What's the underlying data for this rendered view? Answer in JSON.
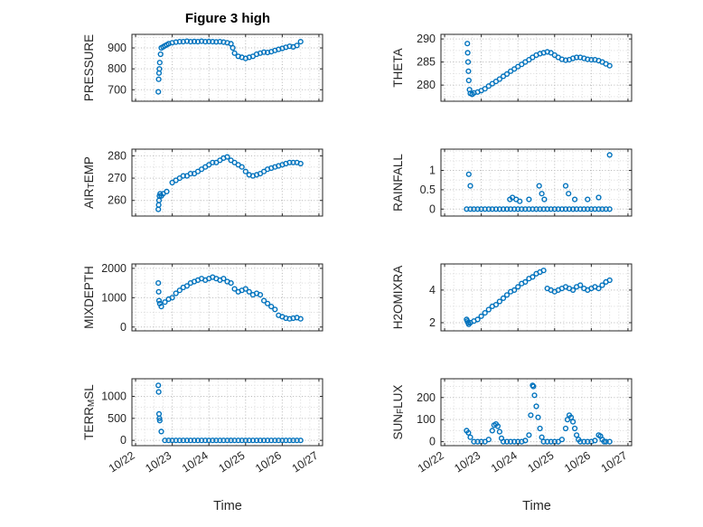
{
  "title": "Figure 3 high",
  "colors": {
    "marker": "#0072BD",
    "axis": "#262626",
    "grid_major": "#b5b5b5",
    "grid_minor": "#d9d9d9"
  },
  "xaxis": {
    "label": "Time",
    "lim": [
      21.9,
      27.1
    ],
    "ticks": [
      22,
      23,
      24,
      25,
      26,
      27
    ],
    "tick_labels": [
      "10/22",
      "10/23",
      "10/24",
      "10/25",
      "10/26",
      "10/27"
    ]
  },
  "chart_data": [
    {
      "type": "scatter",
      "name": "PRESSURE",
      "label": "PRESSURE",
      "row": 0,
      "col": 0,
      "ylim": [
        645,
        965
      ],
      "yticks": [
        700,
        800,
        900
      ],
      "x": [
        22.62,
        22.63,
        22.64,
        22.65,
        22.66,
        22.68,
        22.7,
        22.75,
        22.8,
        22.85,
        22.9,
        23.0,
        23.1,
        23.2,
        23.3,
        23.4,
        23.5,
        23.6,
        23.7,
        23.8,
        23.9,
        24.0,
        24.1,
        24.2,
        24.3,
        24.4,
        24.5,
        24.6,
        24.65,
        24.7,
        24.8,
        24.9,
        25.0,
        25.1,
        25.2,
        25.3,
        25.4,
        25.5,
        25.6,
        25.7,
        25.8,
        25.9,
        26.0,
        26.1,
        26.2,
        26.3,
        26.4,
        26.5
      ],
      "y": [
        690,
        750,
        780,
        800,
        830,
        870,
        900,
        905,
        910,
        915,
        920,
        925,
        928,
        930,
        930,
        932,
        930,
        931,
        930,
        932,
        930,
        931,
        930,
        929,
        930,
        928,
        925,
        920,
        900,
        875,
        860,
        855,
        850,
        855,
        860,
        870,
        875,
        880,
        878,
        882,
        888,
        893,
        898,
        903,
        908,
        905,
        912,
        930
      ]
    },
    {
      "type": "scatter",
      "name": "THETA",
      "label": "THETA",
      "row": 0,
      "col": 1,
      "ylim": [
        276.5,
        291
      ],
      "yticks": [
        280,
        285,
        290
      ],
      "x": [
        22.62,
        22.63,
        22.64,
        22.65,
        22.66,
        22.68,
        22.7,
        22.75,
        22.8,
        22.9,
        23.0,
        23.1,
        23.2,
        23.3,
        23.4,
        23.5,
        23.6,
        23.7,
        23.8,
        23.9,
        24.0,
        24.1,
        24.2,
        24.3,
        24.4,
        24.5,
        24.6,
        24.7,
        24.8,
        24.9,
        25.0,
        25.1,
        25.2,
        25.3,
        25.4,
        25.5,
        25.6,
        25.7,
        25.8,
        25.9,
        26.0,
        26.1,
        26.2,
        26.3,
        26.4,
        26.5
      ],
      "y": [
        289,
        287,
        285,
        283,
        281,
        279,
        278.2,
        278,
        278.3,
        278.5,
        278.8,
        279.2,
        279.8,
        280.3,
        280.8,
        281.3,
        281.9,
        282.4,
        283,
        283.5,
        284,
        284.5,
        285,
        285.5,
        286,
        286.5,
        286.8,
        287,
        287.2,
        287,
        286.5,
        286,
        285.6,
        285.4,
        285.5,
        285.8,
        286,
        286,
        285.8,
        285.6,
        285.5,
        285.5,
        285.3,
        285,
        284.6,
        284.2
      ]
    },
    {
      "type": "scatter",
      "name": "AIRTEMP",
      "label": "AIR_TEMP",
      "row": 1,
      "col": 0,
      "ylim": [
        253,
        283
      ],
      "yticks": [
        260,
        270,
        280
      ],
      "x": [
        22.62,
        22.63,
        22.64,
        22.65,
        22.67,
        22.7,
        22.75,
        22.85,
        23.0,
        23.1,
        23.2,
        23.3,
        23.4,
        23.5,
        23.6,
        23.7,
        23.8,
        23.9,
        24.0,
        24.1,
        24.2,
        24.3,
        24.4,
        24.5,
        24.6,
        24.7,
        24.8,
        24.9,
        25.0,
        25.1,
        25.2,
        25.3,
        25.4,
        25.5,
        25.6,
        25.7,
        25.8,
        25.9,
        26.0,
        26.1,
        26.2,
        26.3,
        26.4,
        26.5
      ],
      "y": [
        256,
        258,
        260,
        262,
        263,
        262,
        263,
        264,
        268,
        269,
        270,
        271,
        271,
        272,
        272,
        273,
        274,
        275,
        276,
        277,
        277,
        278,
        279,
        279.5,
        278,
        277,
        276,
        275,
        273,
        271.5,
        271,
        271.5,
        272,
        273,
        274,
        274.5,
        275,
        275.5,
        276,
        276.5,
        277,
        277,
        277,
        276.5
      ]
    },
    {
      "type": "scatter",
      "name": "RAINFALL",
      "label": "RAINFALL",
      "row": 1,
      "col": 1,
      "ylim": [
        -0.18,
        1.55
      ],
      "yticks": [
        0,
        0.5,
        1
      ],
      "x": [
        22.6,
        22.7,
        22.8,
        22.9,
        23.0,
        23.1,
        23.2,
        23.3,
        23.4,
        23.5,
        23.6,
        23.7,
        23.8,
        23.9,
        24.0,
        24.1,
        24.2,
        24.3,
        24.4,
        24.5,
        24.6,
        24.7,
        24.8,
        24.9,
        25.0,
        25.1,
        25.2,
        25.3,
        25.4,
        25.5,
        25.6,
        25.7,
        25.8,
        25.9,
        26.0,
        26.1,
        26.2,
        26.3,
        26.4,
        26.5,
        22.66,
        22.7,
        23.78,
        23.85,
        23.95,
        24.05,
        24.3,
        24.58,
        24.65,
        24.72,
        25.3,
        25.38,
        25.55,
        25.9,
        26.2,
        26.5
      ],
      "y": [
        0,
        0,
        0,
        0,
        0,
        0,
        0,
        0,
        0,
        0,
        0,
        0,
        0,
        0,
        0,
        0,
        0,
        0,
        0,
        0,
        0,
        0,
        0,
        0,
        0,
        0,
        0,
        0,
        0,
        0,
        0,
        0,
        0,
        0,
        0,
        0,
        0,
        0,
        0,
        0,
        0.9,
        0.6,
        0.25,
        0.3,
        0.25,
        0.2,
        0.25,
        0.6,
        0.4,
        0.25,
        0.6,
        0.4,
        0.25,
        0.25,
        0.3,
        1.4
      ]
    },
    {
      "type": "scatter",
      "name": "MIXDEPTH",
      "label": "MIXDEPTH",
      "row": 2,
      "col": 0,
      "ylim": [
        -130,
        2150
      ],
      "yticks": [
        0,
        1000,
        2000
      ],
      "x": [
        22.62,
        22.63,
        22.64,
        22.66,
        22.7,
        22.8,
        22.9,
        23.0,
        23.1,
        23.2,
        23.3,
        23.4,
        23.5,
        23.6,
        23.7,
        23.8,
        23.9,
        24.0,
        24.1,
        24.2,
        24.3,
        24.4,
        24.5,
        24.6,
        24.7,
        24.8,
        24.9,
        25.0,
        25.1,
        25.2,
        25.3,
        25.4,
        25.5,
        25.6,
        25.7,
        25.8,
        25.9,
        26.0,
        26.1,
        26.2,
        26.3,
        26.4,
        26.5
      ],
      "y": [
        1500,
        1200,
        900,
        800,
        700,
        850,
        950,
        1000,
        1150,
        1250,
        1350,
        1400,
        1500,
        1550,
        1600,
        1650,
        1600,
        1650,
        1700,
        1650,
        1600,
        1650,
        1550,
        1500,
        1300,
        1200,
        1250,
        1300,
        1200,
        1100,
        1150,
        1100,
        900,
        800,
        700,
        600,
        400,
        350,
        300,
        280,
        300,
        320,
        280
      ]
    },
    {
      "type": "scatter",
      "name": "H2OMIXRA",
      "label": "H2OMIXRA",
      "row": 2,
      "col": 1,
      "ylim": [
        1.5,
        5.6
      ],
      "yticks": [
        2,
        4
      ],
      "x": [
        22.6,
        22.62,
        22.64,
        22.66,
        22.7,
        22.8,
        22.9,
        23.0,
        23.1,
        23.2,
        23.3,
        23.4,
        23.5,
        23.6,
        23.7,
        23.8,
        23.9,
        24.0,
        24.1,
        24.2,
        24.3,
        24.4,
        24.5,
        24.6,
        24.7,
        24.8,
        24.9,
        25.0,
        25.1,
        25.2,
        25.3,
        25.4,
        25.5,
        25.6,
        25.7,
        25.8,
        25.9,
        26.0,
        26.1,
        26.2,
        26.3,
        26.4,
        26.5
      ],
      "y": [
        2.2,
        2.1,
        2.0,
        1.9,
        2.0,
        2.1,
        2.2,
        2.4,
        2.6,
        2.8,
        3.0,
        3.1,
        3.3,
        3.5,
        3.7,
        3.9,
        4.0,
        4.2,
        4.4,
        4.5,
        4.7,
        4.8,
        5.0,
        5.1,
        5.2,
        4.1,
        4.0,
        3.9,
        4.0,
        4.1,
        4.2,
        4.1,
        4.0,
        4.2,
        4.3,
        4.1,
        4.0,
        4.1,
        4.2,
        4.1,
        4.3,
        4.5,
        4.6
      ]
    },
    {
      "type": "scatter",
      "name": "TERRMSL",
      "label": "TERR_MSL",
      "row": 3,
      "col": 0,
      "ylim": [
        -120,
        1400
      ],
      "yticks": [
        0,
        500,
        1000
      ],
      "x": [
        22.62,
        22.63,
        22.64,
        22.65,
        22.66,
        22.7,
        22.8,
        22.9,
        23.0,
        23.1,
        23.2,
        23.3,
        23.4,
        23.5,
        23.6,
        23.7,
        23.8,
        23.9,
        24.0,
        24.1,
        24.2,
        24.3,
        24.4,
        24.5,
        24.6,
        24.7,
        24.8,
        24.9,
        25.0,
        25.1,
        25.2,
        25.3,
        25.4,
        25.5,
        25.6,
        25.7,
        25.8,
        25.9,
        26.0,
        26.1,
        26.2,
        26.3,
        26.4,
        26.5
      ],
      "y": [
        1250,
        1100,
        600,
        500,
        450,
        200,
        0,
        0,
        0,
        0,
        0,
        0,
        0,
        0,
        0,
        0,
        0,
        0,
        0,
        0,
        0,
        0,
        0,
        0,
        0,
        0,
        0,
        0,
        0,
        0,
        0,
        0,
        0,
        0,
        0,
        0,
        0,
        0,
        0,
        0,
        0,
        0,
        0,
        0
      ]
    },
    {
      "type": "scatter",
      "name": "SUNFLUX",
      "label": "SUN_FLUX",
      "row": 3,
      "col": 1,
      "ylim": [
        -18,
        285
      ],
      "yticks": [
        0,
        100,
        200
      ],
      "x": [
        22.6,
        22.65,
        22.7,
        22.8,
        22.9,
        23.0,
        23.1,
        23.2,
        23.3,
        23.35,
        23.4,
        23.45,
        23.5,
        23.55,
        23.6,
        23.7,
        23.8,
        23.9,
        24.0,
        24.1,
        24.2,
        24.3,
        24.35,
        24.4,
        24.42,
        24.45,
        24.5,
        24.55,
        24.6,
        24.65,
        24.7,
        24.8,
        24.9,
        25.0,
        25.1,
        25.2,
        25.3,
        25.35,
        25.4,
        25.45,
        25.5,
        25.55,
        25.6,
        25.65,
        25.7,
        25.8,
        25.9,
        26.0,
        26.1,
        26.2,
        26.25,
        26.3,
        26.35,
        26.4,
        26.5
      ],
      "y": [
        50,
        40,
        20,
        0,
        0,
        0,
        0,
        10,
        50,
        75,
        80,
        70,
        45,
        15,
        0,
        0,
        0,
        0,
        0,
        0,
        5,
        30,
        120,
        255,
        250,
        210,
        160,
        110,
        60,
        20,
        0,
        0,
        0,
        0,
        0,
        10,
        60,
        100,
        120,
        110,
        90,
        60,
        30,
        10,
        0,
        0,
        0,
        0,
        5,
        30,
        25,
        10,
        0,
        0,
        0
      ]
    }
  ]
}
